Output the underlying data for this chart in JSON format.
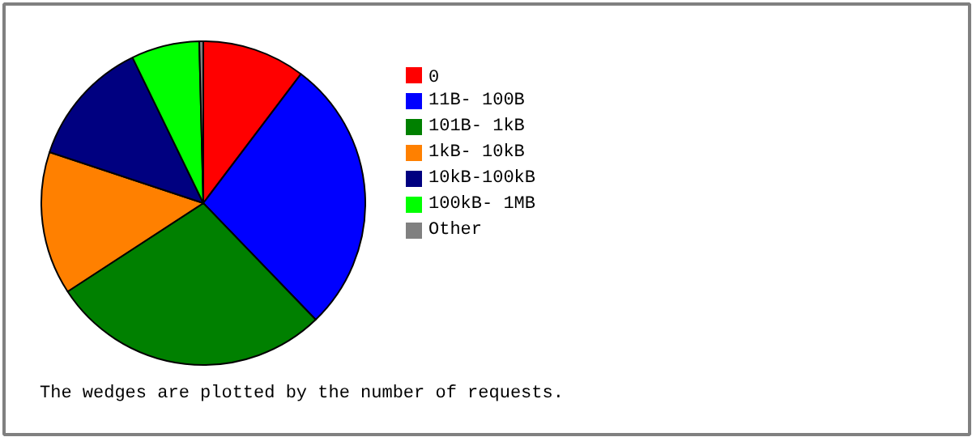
{
  "chart_data": {
    "type": "pie",
    "categories": [
      "0",
      "11B- 100B",
      "101B-  1kB",
      "1kB- 10kB",
      "10kB-100kB",
      "100kB-  1MB",
      "Other"
    ],
    "values": [
      10.3,
      27.5,
      28,
      14.3,
      12.7,
      6.8,
      0.4
    ],
    "colors": [
      "#ff0000",
      "#0000ff",
      "#008000",
      "#ff8000",
      "#000080",
      "#00ff00",
      "#808080"
    ],
    "legend": "right",
    "annotations": [
      "The wedges are plotted by the number of requests."
    ]
  }
}
